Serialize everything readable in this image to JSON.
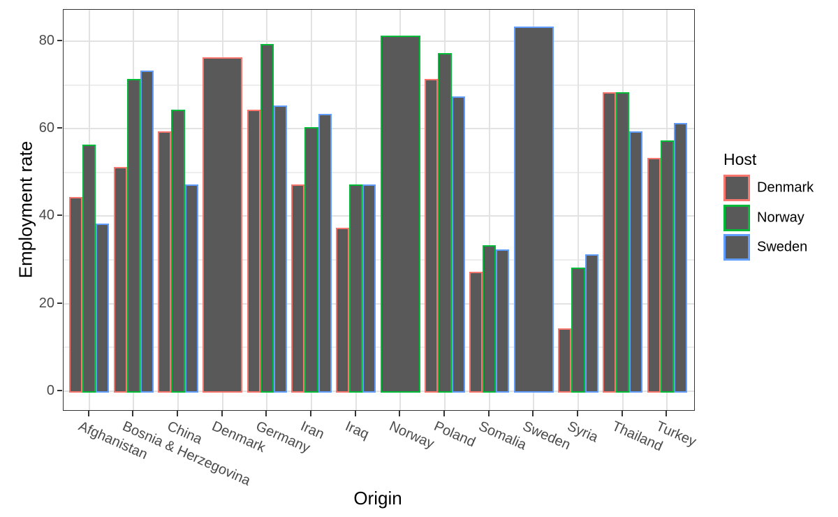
{
  "chart_data": {
    "type": "bar",
    "title": "",
    "xlabel": "Origin",
    "ylabel": "Employment rate",
    "categories": [
      "Afghanistan",
      "Bosnia & Herzegovina",
      "China",
      "Denmark",
      "Germany",
      "Iran",
      "Iraq",
      "Norway",
      "Poland",
      "Somalia",
      "Sweden",
      "Syria",
      "Thailand",
      "Turkey"
    ],
    "series": [
      {
        "name": "Denmark",
        "color": "#F8766D",
        "values": [
          44,
          51,
          59,
          76,
          64,
          47,
          37,
          null,
          71,
          27,
          null,
          14,
          68,
          53
        ]
      },
      {
        "name": "Norway",
        "color": "#00BA38",
        "values": [
          56,
          71,
          64,
          null,
          79,
          60,
          47,
          81,
          77,
          33,
          null,
          28,
          68,
          57
        ]
      },
      {
        "name": "Sweden",
        "color": "#619CFF",
        "values": [
          38,
          73,
          47,
          null,
          65,
          63,
          47,
          null,
          67,
          32,
          83,
          31,
          59,
          61
        ]
      }
    ],
    "bar_fill": "#595959",
    "ylim": [
      0,
      80
    ],
    "yticks": [
      0,
      20,
      40,
      60,
      80
    ],
    "yticks_minor": [
      10,
      30,
      50,
      70
    ],
    "ytick_labels": [
      "0",
      "20",
      "40",
      "60",
      "80"
    ],
    "grid": {
      "horizontal": "major+minor",
      "vertical": "major at category centers"
    },
    "grid_major_color": "#e2e2e2",
    "grid_minor_color": "#ededed",
    "legend": {
      "title": "Host",
      "position": "right"
    }
  }
}
